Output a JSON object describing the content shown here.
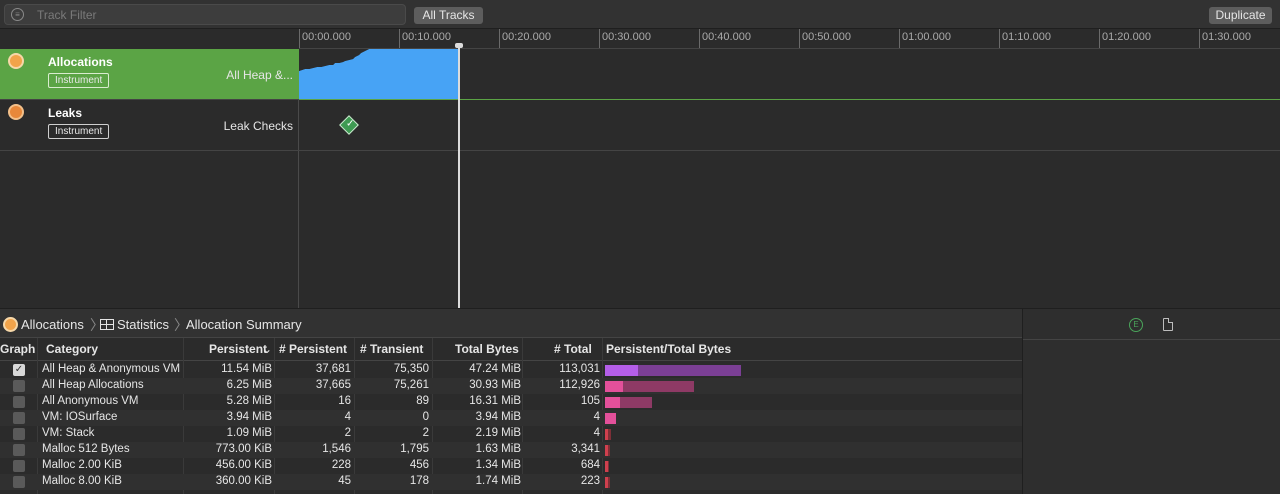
{
  "toolbar": {
    "filter_placeholder": "Track Filter",
    "all_tracks_label": "All Tracks",
    "duplicate_label": "Duplicate"
  },
  "ruler": {
    "ticks": [
      "00:00.000",
      "00:10.000",
      "00:20.000",
      "00:30.000",
      "00:40.000",
      "00:50.000",
      "01:00.000",
      "01:10.000",
      "01:20.000",
      "01:30.000"
    ]
  },
  "tracks": [
    {
      "name": "Allocations",
      "tag": "Instrument",
      "subtitle": "All Heap &...",
      "icon": "allocations-icon",
      "selected": true
    },
    {
      "name": "Leaks",
      "tag": "Instrument",
      "subtitle": "Leak Checks",
      "icon": "leaks-icon",
      "selected": false
    }
  ],
  "breadcrumb": {
    "instrument": "Allocations",
    "view": "Statistics",
    "detail": "Allocation Summary"
  },
  "table": {
    "headers": [
      "Graph",
      "Category",
      "Persistent",
      "# Persistent",
      "# Transient",
      "Total Bytes",
      "# Total",
      "Persistent/Total Bytes"
    ],
    "sort_indicator": "⌄",
    "rows": [
      {
        "checked": true,
        "category": "All Heap & Anonymous VM",
        "persistent": "11.54 MiB",
        "n_persistent": "37,681",
        "n_transient": "75,350",
        "total_bytes": "47.24 MiB",
        "n_total": "113,031",
        "ratio": 0.244,
        "scale": 1.0
      },
      {
        "checked": false,
        "category": "All Heap Allocations",
        "persistent": "6.25 MiB",
        "n_persistent": "37,665",
        "n_transient": "75,261",
        "total_bytes": "30.93 MiB",
        "n_total": "112,926",
        "ratio": 0.202,
        "scale": 0.655
      },
      {
        "checked": false,
        "category": "All Anonymous VM",
        "persistent": "5.28 MiB",
        "n_persistent": "16",
        "n_transient": "89",
        "total_bytes": "16.31 MiB",
        "n_total": "105",
        "ratio": 0.324,
        "scale": 0.345
      },
      {
        "checked": false,
        "category": "VM: IOSurface",
        "persistent": "3.94 MiB",
        "n_persistent": "4",
        "n_transient": "0",
        "total_bytes": "3.94 MiB",
        "n_total": "4",
        "ratio": 1.0,
        "scale": 0.083
      },
      {
        "checked": false,
        "category": "VM: Stack",
        "persistent": "1.09 MiB",
        "n_persistent": "2",
        "n_transient": "2",
        "total_bytes": "2.19 MiB",
        "n_total": "4",
        "ratio": 0.498,
        "scale": 0.046
      },
      {
        "checked": false,
        "category": "Malloc 512 Bytes",
        "persistent": "773.00 KiB",
        "n_persistent": "1,546",
        "n_transient": "1,795",
        "total_bytes": "1.63 MiB",
        "n_total": "3,341",
        "ratio": 0.463,
        "scale": 0.035
      },
      {
        "checked": false,
        "category": "Malloc 2.00 KiB",
        "persistent": "456.00 KiB",
        "n_persistent": "228",
        "n_transient": "456",
        "total_bytes": "1.34 MiB",
        "n_total": "684",
        "ratio": 0.332,
        "scale": 0.028
      },
      {
        "checked": false,
        "category": "Malloc 8.00 KiB",
        "persistent": "360.00 KiB",
        "n_persistent": "45",
        "n_transient": "178",
        "total_bytes": "1.74 MiB",
        "n_total": "223",
        "ratio": 0.202,
        "scale": 0.037
      }
    ]
  },
  "colors": {
    "selected_track": "#5ba445",
    "graph_fill": "#47a3f5",
    "bar_row0_fg": "#b45ee8",
    "bar_row0_bg": "#7b3f95",
    "bar_pink_fg": "#e3509a",
    "bar_pink_bg": "#8e3a65",
    "bar_red_fg": "#d0404e",
    "bar_red_bg": "#7e2f37"
  }
}
